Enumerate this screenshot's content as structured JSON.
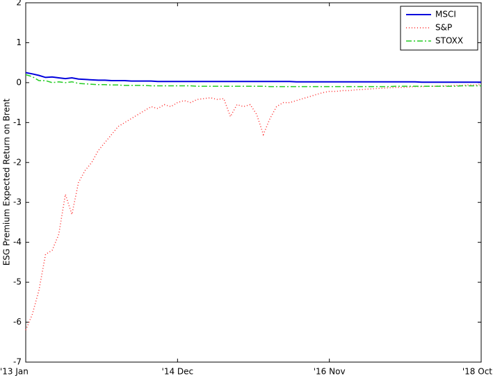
{
  "chart_data": {
    "type": "line",
    "y_label": "ESG Premium Expected Return on Brent",
    "x": [
      0,
      1,
      2,
      3,
      4,
      5,
      6,
      7,
      8,
      9,
      10,
      11,
      12,
      13,
      14,
      15,
      16,
      17,
      18,
      19,
      20,
      21,
      22,
      23,
      24,
      25,
      26,
      27,
      28,
      29,
      30,
      31,
      32,
      33,
      34,
      35,
      36,
      37,
      38,
      39,
      40,
      41,
      42,
      43,
      44,
      45,
      46,
      47,
      48,
      49,
      50,
      51,
      52,
      53,
      54,
      55,
      56,
      57,
      58,
      59,
      60,
      61,
      62,
      63,
      64,
      65,
      66,
      67,
      68,
      69
    ],
    "xlim": [
      0,
      69
    ],
    "xticks": [
      {
        "value": 0,
        "label": "'13 Jan"
      },
      {
        "value": 23,
        "label": "'14 Dec"
      },
      {
        "value": 46,
        "label": "'16 Nov"
      },
      {
        "value": 69,
        "label": "'18 Oct"
      }
    ],
    "ylim": [
      -7,
      2
    ],
    "yticks": [
      -7,
      -6,
      -5,
      -4,
      -3,
      -2,
      -1,
      0,
      1,
      2
    ],
    "legend": "upper right",
    "series": [
      {
        "name": "MSCI",
        "color": "#0000dd",
        "style": "solid",
        "values": [
          0.25,
          0.22,
          0.18,
          0.13,
          0.14,
          0.12,
          0.1,
          0.12,
          0.09,
          0.08,
          0.07,
          0.06,
          0.06,
          0.05,
          0.05,
          0.05,
          0.04,
          0.04,
          0.04,
          0.04,
          0.03,
          0.03,
          0.03,
          0.03,
          0.03,
          0.03,
          0.03,
          0.03,
          0.03,
          0.03,
          0.03,
          0.03,
          0.03,
          0.03,
          0.03,
          0.03,
          0.03,
          0.03,
          0.03,
          0.03,
          0.03,
          0.02,
          0.02,
          0.02,
          0.02,
          0.02,
          0.02,
          0.02,
          0.02,
          0.02,
          0.02,
          0.02,
          0.02,
          0.02,
          0.02,
          0.02,
          0.02,
          0.02,
          0.02,
          0.02,
          0.01,
          0.01,
          0.01,
          0.01,
          0.01,
          0.01,
          0.01,
          0.01,
          0.01,
          0.01
        ]
      },
      {
        "name": "S&P",
        "color": "#ff2222",
        "style": "dotted",
        "values": [
          -6.2,
          -5.8,
          -5.2,
          -4.3,
          -4.2,
          -3.8,
          -2.8,
          -3.3,
          -2.5,
          -2.2,
          -2.0,
          -1.7,
          -1.5,
          -1.3,
          -1.1,
          -1.0,
          -0.9,
          -0.8,
          -0.7,
          -0.6,
          -0.65,
          -0.55,
          -0.6,
          -0.5,
          -0.45,
          -0.5,
          -0.42,
          -0.4,
          -0.38,
          -0.42,
          -0.4,
          -0.85,
          -0.55,
          -0.6,
          -0.55,
          -0.8,
          -1.3,
          -0.9,
          -0.6,
          -0.5,
          -0.5,
          -0.45,
          -0.4,
          -0.35,
          -0.3,
          -0.25,
          -0.22,
          -0.22,
          -0.2,
          -0.2,
          -0.18,
          -0.17,
          -0.16,
          -0.15,
          -0.14,
          -0.13,
          -0.12,
          -0.12,
          -0.11,
          -0.1,
          -0.1,
          -0.09,
          -0.09,
          -0.08,
          -0.08,
          -0.07,
          -0.07,
          -0.06,
          -0.06,
          -0.05
        ]
      },
      {
        "name": "STOXX",
        "color": "#22cc22",
        "style": "dashdot",
        "values": [
          0.2,
          0.15,
          0.05,
          0.05,
          0.0,
          0.02,
          0.0,
          0.02,
          -0.02,
          -0.03,
          -0.04,
          -0.05,
          -0.05,
          -0.06,
          -0.06,
          -0.07,
          -0.07,
          -0.07,
          -0.07,
          -0.08,
          -0.08,
          -0.08,
          -0.08,
          -0.08,
          -0.08,
          -0.08,
          -0.09,
          -0.09,
          -0.09,
          -0.09,
          -0.09,
          -0.09,
          -0.09,
          -0.09,
          -0.09,
          -0.09,
          -0.09,
          -0.1,
          -0.1,
          -0.1,
          -0.1,
          -0.1,
          -0.1,
          -0.1,
          -0.1,
          -0.1,
          -0.1,
          -0.1,
          -0.1,
          -0.1,
          -0.1,
          -0.1,
          -0.1,
          -0.1,
          -0.1,
          -0.1,
          -0.09,
          -0.09,
          -0.09,
          -0.09,
          -0.09,
          -0.09,
          -0.09,
          -0.09,
          -0.09,
          -0.09,
          -0.08,
          -0.08,
          -0.08,
          -0.08
        ]
      }
    ]
  }
}
